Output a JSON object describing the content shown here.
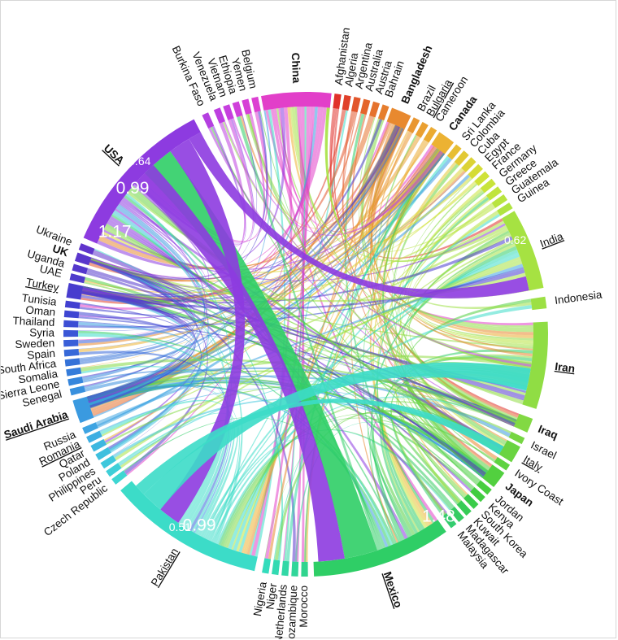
{
  "chart_data": {
    "type": "chord",
    "groups": [
      {
        "name": "China",
        "color": "#e23fc9",
        "bold": true,
        "underline": false
      },
      {
        "name": "Afghanistan",
        "color": "#e0302a",
        "bold": false,
        "underline": false
      },
      {
        "name": "Algeria",
        "color": "#e0402a",
        "bold": false,
        "underline": false
      },
      {
        "name": "Argentina",
        "color": "#e2552b",
        "bold": false,
        "underline": false
      },
      {
        "name": "Australia",
        "color": "#e4652c",
        "bold": false,
        "underline": false
      },
      {
        "name": "Austria",
        "color": "#e5722d",
        "bold": false,
        "underline": false
      },
      {
        "name": "Bahrain",
        "color": "#e67e2e",
        "bold": false,
        "underline": false
      },
      {
        "name": "Bangladesh",
        "color": "#e8892f",
        "bold": true,
        "underline": false
      },
      {
        "name": "Brazil",
        "color": "#e99630",
        "bold": false,
        "underline": false
      },
      {
        "name": "Bulgaria",
        "color": "#eaa031",
        "bold": false,
        "underline": true
      },
      {
        "name": "Cameroon",
        "color": "#ebab32",
        "bold": false,
        "underline": false
      },
      {
        "name": "Canada",
        "color": "#ecb233",
        "bold": true,
        "underline": false
      },
      {
        "name": "Sri Lanka",
        "color": "#e7be33",
        "bold": false,
        "underline": false
      },
      {
        "name": "Colombia",
        "color": "#e2c934",
        "bold": false,
        "underline": false
      },
      {
        "name": "Cuba",
        "color": "#dcd335",
        "bold": false,
        "underline": false
      },
      {
        "name": "Egypt",
        "color": "#d5dc36",
        "bold": false,
        "underline": false
      },
      {
        "name": "France",
        "color": "#cfe238",
        "bold": false,
        "underline": false
      },
      {
        "name": "Germany",
        "color": "#c8e43a",
        "bold": false,
        "underline": false
      },
      {
        "name": "Greece",
        "color": "#c0e43c",
        "bold": false,
        "underline": false
      },
      {
        "name": "Guatemala",
        "color": "#b8e43e",
        "bold": false,
        "underline": false
      },
      {
        "name": "Guinea",
        "color": "#b0e440",
        "bold": false,
        "underline": false
      },
      {
        "name": "India",
        "color": "#a6e242",
        "bold": false,
        "underline": true
      },
      {
        "name": "Indonesia",
        "color": "#9ce044",
        "bold": false,
        "underline": false
      },
      {
        "name": "Iran",
        "color": "#90dd44",
        "bold": true,
        "underline": true
      },
      {
        "name": "Iraq",
        "color": "#82d943",
        "bold": true,
        "underline": false
      },
      {
        "name": "Israel",
        "color": "#76d642",
        "bold": false,
        "underline": false
      },
      {
        "name": "Italy",
        "color": "#6ad441",
        "bold": false,
        "underline": true
      },
      {
        "name": "Ivory Coast",
        "color": "#5ed240",
        "bold": false,
        "underline": false
      },
      {
        "name": "Japan",
        "color": "#52d03f",
        "bold": true,
        "underline": false
      },
      {
        "name": "Jordan",
        "color": "#48ce3f",
        "bold": false,
        "underline": false
      },
      {
        "name": "Kenya",
        "color": "#40cc40",
        "bold": false,
        "underline": false
      },
      {
        "name": "South Korea",
        "color": "#3acc4a",
        "bold": false,
        "underline": false
      },
      {
        "name": "Kuwait",
        "color": "#36cc56",
        "bold": false,
        "underline": false
      },
      {
        "name": "Madagascar",
        "color": "#34cc62",
        "bold": false,
        "underline": false
      },
      {
        "name": "Malaysia",
        "color": "#33cc6e",
        "bold": false,
        "underline": false
      },
      {
        "name": "Mexico",
        "color": "#2fce66",
        "bold": true,
        "underline": true
      },
      {
        "name": "Morocco",
        "color": "#30d48e",
        "bold": false,
        "underline": false
      },
      {
        "name": "Mozambique",
        "color": "#31d69a",
        "bold": false,
        "underline": false
      },
      {
        "name": "Netherlands",
        "color": "#32d8a6",
        "bold": false,
        "underline": false
      },
      {
        "name": "Niger",
        "color": "#33dab2",
        "bold": false,
        "underline": false
      },
      {
        "name": "Nigeria",
        "color": "#34dcbc",
        "bold": false,
        "underline": false
      },
      {
        "name": "Pakistan",
        "color": "#3cdcc8",
        "bold": false,
        "underline": true
      },
      {
        "name": "Czech Republic",
        "color": "#3ed6d2",
        "bold": false,
        "underline": false
      },
      {
        "name": "Peru",
        "color": "#3ecfd8",
        "bold": false,
        "underline": false
      },
      {
        "name": "Philippines",
        "color": "#3ec7dc",
        "bold": false,
        "underline": false
      },
      {
        "name": "Poland",
        "color": "#3ebfde",
        "bold": false,
        "underline": false
      },
      {
        "name": "Qatar",
        "color": "#3eb7e0",
        "bold": false,
        "underline": false
      },
      {
        "name": "Romania",
        "color": "#3eaee2",
        "bold": false,
        "underline": true
      },
      {
        "name": "Russia",
        "color": "#3ea4e2",
        "bold": false,
        "underline": false
      },
      {
        "name": "Saudi Arabia",
        "color": "#3a9ae0",
        "bold": true,
        "underline": true
      },
      {
        "name": "Senegal",
        "color": "#3890de",
        "bold": false,
        "underline": false
      },
      {
        "name": "Sierra Leone",
        "color": "#3686dc",
        "bold": false,
        "underline": false
      },
      {
        "name": "Somalia",
        "color": "#357cda",
        "bold": false,
        "underline": false
      },
      {
        "name": "South Africa",
        "color": "#3572d8",
        "bold": false,
        "underline": false
      },
      {
        "name": "Spain",
        "color": "#3668d8",
        "bold": false,
        "underline": false
      },
      {
        "name": "Sweden",
        "color": "#385ed8",
        "bold": false,
        "underline": false
      },
      {
        "name": "Syria",
        "color": "#3a56d6",
        "bold": false,
        "underline": false
      },
      {
        "name": "Thailand",
        "color": "#3c4ed4",
        "bold": false,
        "underline": false
      },
      {
        "name": "Oman",
        "color": "#3e46d2",
        "bold": false,
        "underline": false
      },
      {
        "name": "Tunisia",
        "color": "#4240d0",
        "bold": false,
        "underline": false
      },
      {
        "name": "Turkey",
        "color": "#483cce",
        "bold": false,
        "underline": true
      },
      {
        "name": "UAE",
        "color": "#4e3acc",
        "bold": false,
        "underline": false
      },
      {
        "name": "Uganda",
        "color": "#5438cc",
        "bold": false,
        "underline": false
      },
      {
        "name": "UK",
        "color": "#5a36cc",
        "bold": true,
        "underline": false
      },
      {
        "name": "Ukraine",
        "color": "#6034cc",
        "bold": false,
        "underline": false
      },
      {
        "name": "USA",
        "color": "#8d3be0",
        "bold": true,
        "underline": true
      },
      {
        "name": "Burkina Faso",
        "color": "#b43fe0",
        "bold": false,
        "underline": false
      },
      {
        "name": "Venezuela",
        "color": "#bd3fe0",
        "bold": false,
        "underline": false
      },
      {
        "name": "Vietnam",
        "color": "#c63fde",
        "bold": false,
        "underline": false
      },
      {
        "name": "Ethiopia",
        "color": "#cf3fda",
        "bold": false,
        "underline": false
      },
      {
        "name": "Yemen",
        "color": "#d63fd6",
        "bold": false,
        "underline": false
      },
      {
        "name": "Belgium",
        "color": "#dc3fd2",
        "bold": false,
        "underline": false
      }
    ],
    "major_links": [
      {
        "source": "Mexico",
        "target": "USA",
        "value": 1.48
      },
      {
        "source": "USA",
        "target": "Pakistan",
        "value": 0.99
      },
      {
        "source": "USA",
        "target": "India",
        "value": 0.64
      },
      {
        "source": "USA",
        "target": "Mexico",
        "value": 1.17
      },
      {
        "source": "India",
        "target": "China",
        "value": 0.62
      },
      {
        "source": "Pakistan",
        "target": "Iran",
        "value": 0.99
      },
      {
        "source": "Pakistan",
        "target": "Italy",
        "value": 0.51
      }
    ],
    "value_labels": [
      {
        "text": "1.17",
        "group": "USA"
      },
      {
        "text": "0.99",
        "group": "USA"
      },
      {
        "text": "0.64",
        "group": "USA"
      },
      {
        "text": "0.62",
        "group": "India"
      },
      {
        "text": "1.48",
        "group": "Mexico"
      },
      {
        "text": "0.99",
        "group": "Pakistan"
      },
      {
        "text": "0.51",
        "group": "Pakistan"
      }
    ]
  }
}
